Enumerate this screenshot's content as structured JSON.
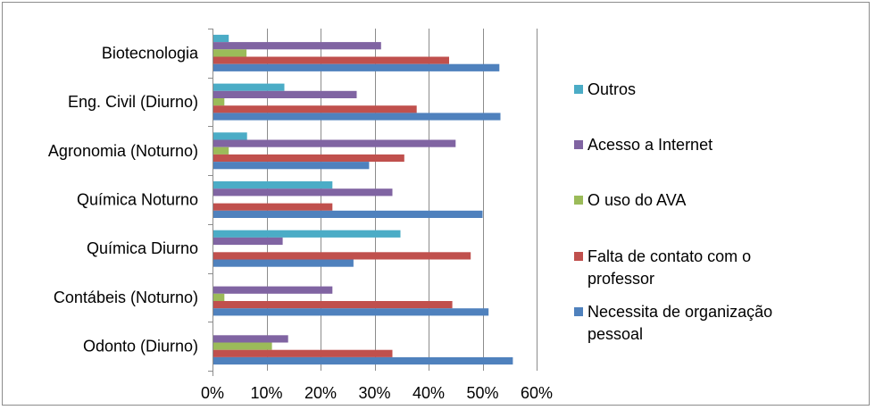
{
  "chart_data": {
    "type": "bar",
    "orientation": "horizontal",
    "categories": [
      "Biotecnologia",
      "Eng. Civil (Diurno)",
      "Agronomia (Noturno)",
      "Química Noturno",
      "Química Diurno",
      "Contábeis (Noturno)",
      "Odonto (Diurno)"
    ],
    "series": [
      {
        "name": "Outros",
        "color": "#4bacc6",
        "values": [
          3,
          13.3,
          6.4,
          22.2,
          34.8,
          0,
          0
        ]
      },
      {
        "name": "Acesso a Internet",
        "color": "#8064a2",
        "values": [
          31.2,
          26.7,
          45,
          33.3,
          13,
          22.2,
          14
        ]
      },
      {
        "name": "O uso do AVA",
        "color": "#9bbb59",
        "values": [
          6.3,
          2.2,
          3,
          0,
          0,
          2.2,
          11
        ]
      },
      {
        "name": "Falta de contato com o professor",
        "color": "#c0504d",
        "values": [
          43.8,
          37.8,
          35.5,
          22.2,
          47.8,
          44.4,
          33.3
        ]
      },
      {
        "name": "Necessita de organização pessoal",
        "color": "#4f81bd",
        "values": [
          53.1,
          53.3,
          29,
          50,
          26.1,
          51.1,
          55.6
        ]
      }
    ],
    "xlim": [
      0,
      60
    ],
    "xticks": [
      "0%",
      "10%",
      "20%",
      "30%",
      "40%",
      "50%",
      "60%"
    ],
    "grid": true,
    "legend": "right",
    "title": "",
    "xlabel": "",
    "ylabel": ""
  }
}
